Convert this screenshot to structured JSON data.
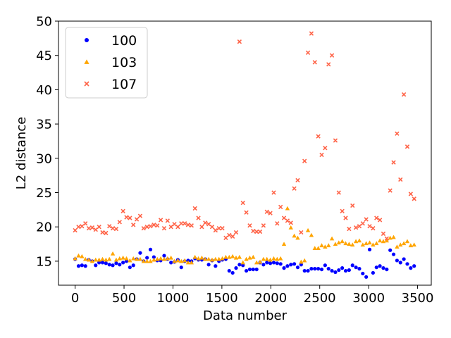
{
  "chart_data": {
    "type": "scatter",
    "title": "",
    "xlabel": "Data number",
    "ylabel": "L2 distance",
    "xlim": [
      -170,
      3640
    ],
    "ylim": [
      11.5,
      50
    ],
    "x_ticks": [
      0,
      500,
      1000,
      1500,
      2000,
      2500,
      3000,
      3500
    ],
    "y_ticks": [
      15,
      20,
      25,
      30,
      35,
      40,
      45,
      50
    ],
    "x_tick_labels": [
      "0",
      "500",
      "1000",
      "1500",
      "2000",
      "2500",
      "3000",
      "3500"
    ],
    "y_tick_labels": [
      "15",
      "20",
      "25",
      "30",
      "35",
      "40",
      "45",
      "50"
    ],
    "grid": false,
    "legend_position": "top-left",
    "x": [
      0,
      35,
      70,
      105,
      140,
      175,
      210,
      245,
      280,
      315,
      350,
      385,
      420,
      455,
      490,
      525,
      560,
      595,
      630,
      665,
      700,
      735,
      770,
      805,
      840,
      875,
      910,
      945,
      980,
      1015,
      1050,
      1085,
      1120,
      1155,
      1190,
      1225,
      1260,
      1295,
      1330,
      1365,
      1400,
      1435,
      1470,
      1505,
      1540,
      1575,
      1610,
      1645,
      1680,
      1715,
      1750,
      1785,
      1820,
      1855,
      1890,
      1925,
      1960,
      1995,
      2030,
      2065,
      2100,
      2135,
      2170,
      2205,
      2240,
      2275,
      2310,
      2345,
      2380,
      2415,
      2450,
      2485,
      2520,
      2555,
      2590,
      2625,
      2660,
      2695,
      2730,
      2765,
      2800,
      2835,
      2870,
      2905,
      2940,
      2975,
      3010,
      3045,
      3080,
      3115,
      3150,
      3185,
      3220,
      3255,
      3290,
      3325,
      3360,
      3395,
      3430,
      3465
    ],
    "series": [
      {
        "name": "100",
        "marker": "circle",
        "color": "#0000ff",
        "values": [
          15.3,
          14.3,
          14.4,
          14.3,
          15.2,
          15.0,
          14.4,
          14.8,
          14.8,
          14.7,
          14.5,
          14.4,
          14.7,
          14.5,
          14.8,
          15.0,
          14.1,
          14.4,
          15.3,
          16.2,
          15.0,
          15.5,
          16.7,
          15.6,
          15.1,
          15.1,
          15.8,
          15.3,
          14.8,
          14.9,
          15.2,
          14.1,
          15.0,
          15.1,
          15.0,
          15.4,
          15.2,
          15.2,
          15.3,
          14.5,
          15.1,
          14.3,
          15.0,
          15.2,
          15.3,
          13.6,
          13.3,
          14.0,
          14.5,
          14.4,
          13.6,
          13.8,
          13.8,
          13.8,
          14.8,
          14.5,
          14.8,
          14.7,
          14.8,
          14.7,
          14.6,
          14.0,
          14.3,
          14.5,
          14.6,
          14.1,
          14.5,
          13.6,
          13.6,
          13.9,
          13.9,
          13.9,
          13.8,
          14.4,
          13.9,
          13.6,
          13.4,
          13.7,
          14.0,
          13.6,
          13.7,
          14.4,
          14.1,
          13.9,
          13.2,
          12.7,
          16.7,
          13.3,
          14.1,
          14.3,
          14.0,
          13.8,
          16.6,
          16.0,
          15.1,
          14.8,
          15.3,
          14.6,
          14.0,
          14.3
        ]
      },
      {
        "name": "103",
        "marker": "triangle",
        "color": "#ffa500",
        "values": [
          15.4,
          15.8,
          15.7,
          15.3,
          15.2,
          15.0,
          15.2,
          15.2,
          15.3,
          15.2,
          15.3,
          16.1,
          15.2,
          15.4,
          15.5,
          15.4,
          15.1,
          15.4,
          15.3,
          15.3,
          15.0,
          15.0,
          15.0,
          15.2,
          15.3,
          15.4,
          15.3,
          15.4,
          15.5,
          15.0,
          15.1,
          15.0,
          15.1,
          14.8,
          14.8,
          15.6,
          15.4,
          15.5,
          15.3,
          15.3,
          15.2,
          15.3,
          15.3,
          15.4,
          15.6,
          15.6,
          15.7,
          15.5,
          15.6,
          14.8,
          15.3,
          15.5,
          15.6,
          14.8,
          14.9,
          15.3,
          15.3,
          15.2,
          15.4,
          15.3,
          15.4,
          17.5,
          22.7,
          19.9,
          18.7,
          18.4,
          14.9,
          15.1,
          19.5,
          18.8,
          16.9,
          16.9,
          17.3,
          17.1,
          17.3,
          18.3,
          17.5,
          17.7,
          17.9,
          17.6,
          17.5,
          17.4,
          17.9,
          18.0,
          17.4,
          17.6,
          17.7,
          17.4,
          17.6,
          18.0,
          17.9,
          18.0,
          18.4,
          18.5,
          17.1,
          17.4,
          17.6,
          17.9,
          17.3,
          17.4
        ]
      },
      {
        "name": "107",
        "marker": "x",
        "color": "#ff6347",
        "values": [
          19.5,
          20.0,
          20.1,
          20.5,
          19.8,
          19.9,
          19.6,
          20.0,
          19.2,
          19.1,
          20.1,
          19.8,
          19.7,
          20.7,
          22.3,
          21.4,
          21.3,
          20.3,
          21.1,
          21.6,
          19.8,
          20.0,
          20.1,
          20.3,
          20.2,
          21.0,
          19.8,
          20.9,
          20.0,
          20.4,
          20.0,
          20.5,
          20.5,
          20.3,
          20.2,
          22.7,
          21.3,
          20.0,
          20.6,
          20.4,
          20.0,
          19.5,
          19.8,
          19.8,
          18.4,
          18.8,
          18.6,
          19.2,
          47.0,
          23.5,
          22.1,
          20.2,
          19.4,
          19.3,
          19.3,
          20.2,
          22.2,
          22.0,
          25.0,
          20.5,
          22.9,
          21.3,
          20.9,
          20.6,
          25.6,
          26.8,
          19.2,
          29.6,
          45.4,
          48.2,
          44.0,
          33.2,
          30.5,
          31.5,
          43.7,
          45.0,
          32.6,
          25.0,
          22.3,
          21.3,
          19.7,
          23.1,
          19.9,
          20.1,
          20.5,
          21.1,
          20.1,
          19.8,
          21.3,
          21.0,
          19.0,
          18.3,
          25.3,
          29.4,
          33.6,
          26.9,
          39.3,
          31.7,
          24.8,
          24.1
        ]
      }
    ]
  }
}
